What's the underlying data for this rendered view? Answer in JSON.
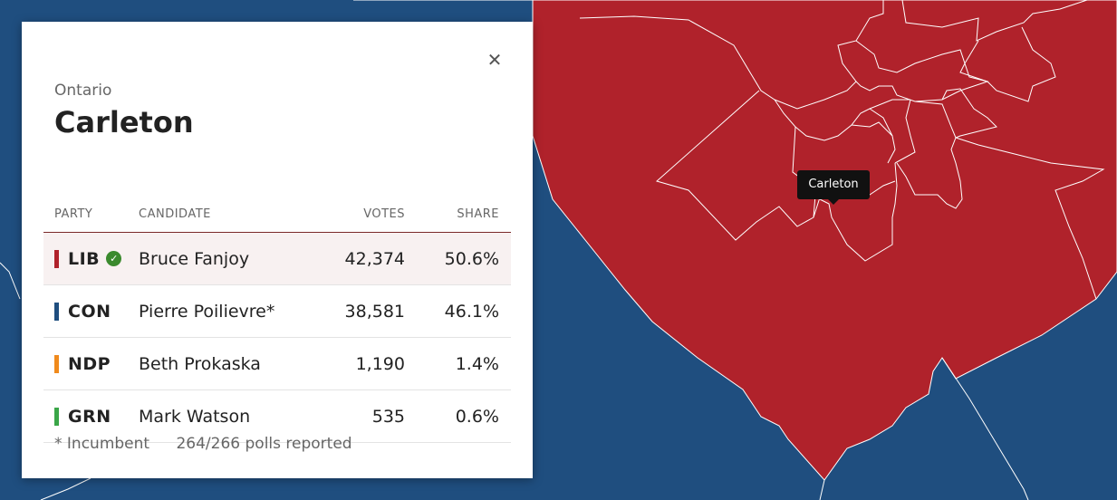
{
  "map": {
    "colors": {
      "water": "#1f4e7f",
      "lib": "#b0222b",
      "border": "#ffffff"
    },
    "hover_label": "Carleton"
  },
  "panel": {
    "province": "Ontario",
    "riding": "Carleton",
    "close_icon": "close-icon",
    "columns": {
      "party": "PARTY",
      "candidate": "CANDIDATE",
      "votes": "VOTES",
      "share": "SHARE"
    },
    "rows": [
      {
        "party": "LIB",
        "color": "#b0222b",
        "candidate": "Bruce Fanjoy",
        "votes": "42,374",
        "share": "50.6%",
        "winner": true
      },
      {
        "party": "CON",
        "color": "#1f4e7f",
        "candidate": "Pierre Poilievre*",
        "votes": "38,581",
        "share": "46.1%"
      },
      {
        "party": "NDP",
        "color": "#f08a1c",
        "candidate": "Beth Prokaska",
        "votes": "1,190",
        "share": "1.4%"
      },
      {
        "party": "GRN",
        "color": "#3aa648",
        "candidate": "Mark Watson",
        "votes": "535",
        "share": "0.6%"
      }
    ],
    "footer": {
      "incumbent_note": "* Incumbent",
      "polls": "264/266 polls reported"
    }
  }
}
